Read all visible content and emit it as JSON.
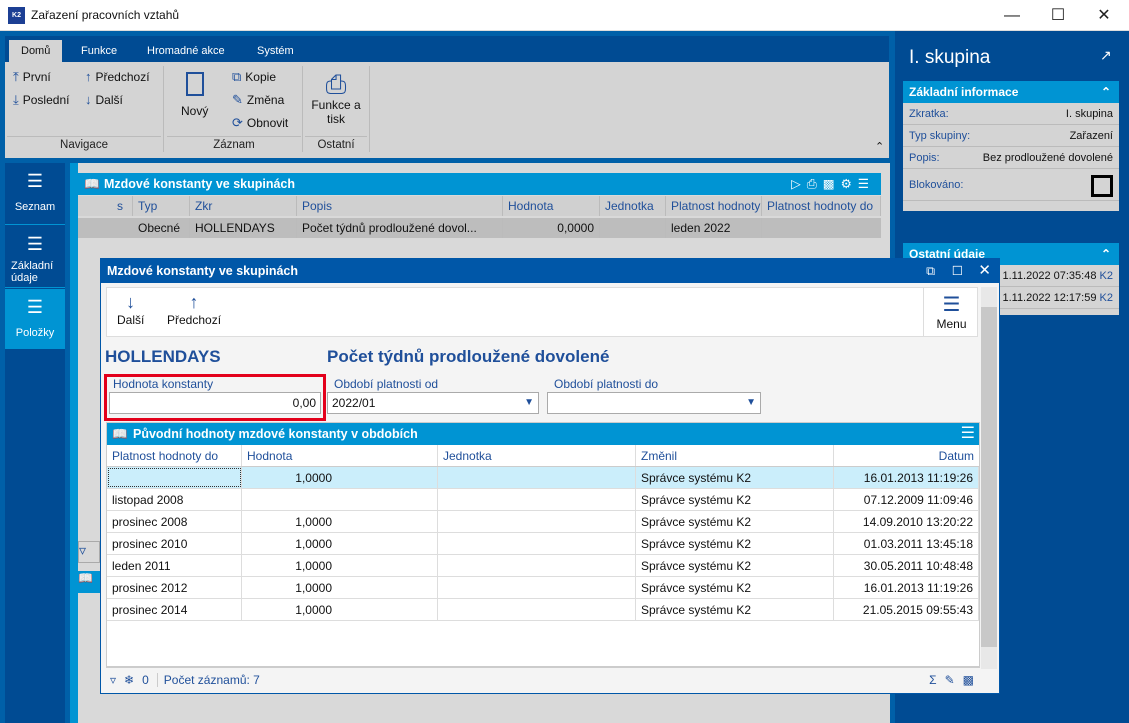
{
  "window": {
    "title": "Zařazení pracovních vztahů",
    "logo": "K2",
    "controls": [
      "minimize-icon",
      "maximize-icon",
      "close-icon"
    ]
  },
  "ribbon": {
    "tabs": [
      "Domů",
      "Funkce",
      "Hromadné akce",
      "Systém"
    ],
    "navigace": {
      "label": "Navigace",
      "items": [
        "První",
        "Předchozí",
        "Poslední",
        "Další"
      ]
    },
    "zaznam": {
      "label": "Záznam",
      "new": "Nový",
      "items": [
        "Kopie",
        "Změna",
        "Obnovit"
      ]
    },
    "ostatni": {
      "label": "Ostatní",
      "print_line1": "Funkce a",
      "print_line2": "tisk"
    }
  },
  "leftnav": [
    {
      "label": "Seznam"
    },
    {
      "label1": "Základní",
      "label2": "údaje"
    },
    {
      "label": "Položky",
      "selected": true
    }
  ],
  "grid": {
    "title": "Mzdové konstanty ve skupinách",
    "columns": [
      "s",
      "Typ",
      "Zkr",
      "Popis",
      "Hodnota",
      "Jednotka",
      "Platnost hodnoty",
      "Platnost hodnoty do"
    ],
    "row": [
      "",
      "Obecné",
      "HOLLENDAYS",
      "Počet týdnů prodloužené dovol...",
      "0,0000",
      "",
      "leden 2022",
      ""
    ]
  },
  "right": {
    "title": "I. skupina",
    "zakladni": {
      "header": "Základní informace",
      "rows": [
        {
          "k": "Zkratka:",
          "v": "I. skupina"
        },
        {
          "k": "Typ skupiny:",
          "v": "Zařazení"
        },
        {
          "k": "Popis:",
          "v": "Bez prodloužené dovolené"
        }
      ],
      "blokovano": "Blokováno:"
    },
    "ostatni": {
      "header": "Ostatní údaje",
      "rows": [
        {
          "v": "1.11.2022 07:35:48",
          "u": "K2"
        },
        {
          "v": "1.11.2022 12:17:59",
          "u": "K2"
        }
      ]
    }
  },
  "modal": {
    "title": "Mzdové konstanty ve skupinách",
    "next": "Další",
    "prev": "Předchozí",
    "menu": "Menu",
    "code": "HOLLENDAYS",
    "name": "Počet týdnů prodloužené dovolené",
    "value_label": "Hodnota konstanty",
    "value": "0,00",
    "from_label": "Období platnosti od",
    "from": "2022/01",
    "to_label": "Období platnosti do",
    "to": "",
    "history": {
      "title": "Původní hodnoty mzdové konstanty v obdobích",
      "columns": [
        "Platnost hodnoty do",
        "Hodnota",
        "Jednotka",
        "Změnil",
        "Datum"
      ],
      "rows": [
        [
          "",
          "1,0000",
          "",
          "Správce systému K2",
          "16.01.2013 11:19:26"
        ],
        [
          "listopad 2008",
          "",
          "",
          "Správce systému K2",
          "07.12.2009 11:09:46"
        ],
        [
          "prosinec 2008",
          "1,0000",
          "",
          "Správce systému K2",
          "14.09.2010 13:20:22"
        ],
        [
          "prosinec 2010",
          "1,0000",
          "",
          "Správce systému K2",
          "01.03.2011 13:45:18"
        ],
        [
          "leden 2011",
          "1,0000",
          "",
          "Správce systému K2",
          "30.05.2011 10:48:48"
        ],
        [
          "prosinec 2012",
          "1,0000",
          "",
          "Správce systému K2",
          "16.01.2013 11:19:26"
        ],
        [
          "prosinec 2014",
          "1,0000",
          "",
          "Správce systému K2",
          "21.05.2015 09:55:43"
        ]
      ]
    },
    "status": {
      "freeze_count": "0",
      "count": "Počet záznamů: 7"
    }
  },
  "colors": {
    "dark_blue": "#004b93",
    "accent": "#0094d3",
    "highlight": "#e3001b"
  }
}
